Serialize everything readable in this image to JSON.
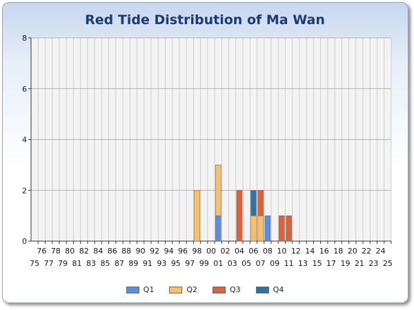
{
  "chart_data": {
    "type": "bar",
    "stacked": true,
    "title": "Red Tide Distribution of Ma Wan",
    "xlabel": "",
    "ylabel": "",
    "ylim": [
      0,
      8
    ],
    "yticks": [
      0,
      2,
      4,
      6,
      8
    ],
    "grid": true,
    "legend_position": "bottom",
    "categories": [
      "75",
      "76",
      "77",
      "78",
      "79",
      "80",
      "81",
      "82",
      "83",
      "84",
      "85",
      "86",
      "87",
      "88",
      "89",
      "90",
      "91",
      "92",
      "93",
      "94",
      "95",
      "96",
      "97",
      "98",
      "99",
      "00",
      "01",
      "02",
      "03",
      "04",
      "05",
      "06",
      "07",
      "08",
      "09",
      "10",
      "11",
      "12",
      "13",
      "14",
      "15",
      "16",
      "17",
      "18",
      "19",
      "20",
      "21",
      "22",
      "23",
      "24",
      "25"
    ],
    "series": [
      {
        "name": "Q1",
        "color": "#5a8fe0",
        "values": [
          0,
          0,
          0,
          0,
          0,
          0,
          0,
          0,
          0,
          0,
          0,
          0,
          0,
          0,
          0,
          0,
          0,
          0,
          0,
          0,
          0,
          0,
          0,
          0,
          0,
          0,
          1,
          0,
          0,
          0,
          0,
          0,
          0,
          1,
          0,
          0,
          0,
          0,
          0,
          0,
          0,
          0,
          0,
          0,
          0,
          0,
          0,
          0,
          0,
          0,
          0
        ]
      },
      {
        "name": "Q2",
        "color": "#f6c16a",
        "values": [
          0,
          0,
          0,
          0,
          0,
          0,
          0,
          0,
          0,
          0,
          0,
          0,
          0,
          0,
          0,
          0,
          0,
          0,
          0,
          0,
          0,
          0,
          0,
          2,
          0,
          0,
          2,
          0,
          0,
          0,
          0,
          1,
          1,
          0,
          0,
          0,
          0,
          0,
          0,
          0,
          0,
          0,
          0,
          0,
          0,
          0,
          0,
          0,
          0,
          0,
          0
        ]
      },
      {
        "name": "Q3",
        "color": "#e0603a",
        "values": [
          0,
          0,
          0,
          0,
          0,
          0,
          0,
          0,
          0,
          0,
          0,
          0,
          0,
          0,
          0,
          0,
          0,
          0,
          0,
          0,
          0,
          0,
          0,
          0,
          0,
          0,
          0,
          0,
          0,
          2,
          0,
          0,
          1,
          0,
          0,
          1,
          1,
          0,
          0,
          0,
          0,
          0,
          0,
          0,
          0,
          0,
          0,
          0,
          0,
          0,
          0
        ]
      },
      {
        "name": "Q4",
        "color": "#2f73a3",
        "values": [
          0,
          0,
          0,
          0,
          0,
          0,
          0,
          0,
          0,
          0,
          0,
          0,
          0,
          0,
          0,
          0,
          0,
          0,
          0,
          0,
          0,
          0,
          0,
          0,
          0,
          0,
          0,
          0,
          0,
          0,
          0,
          1,
          0,
          0,
          0,
          0,
          0,
          0,
          0,
          0,
          0,
          0,
          0,
          0,
          0,
          0,
          0,
          0,
          0,
          0,
          0
        ]
      }
    ]
  }
}
